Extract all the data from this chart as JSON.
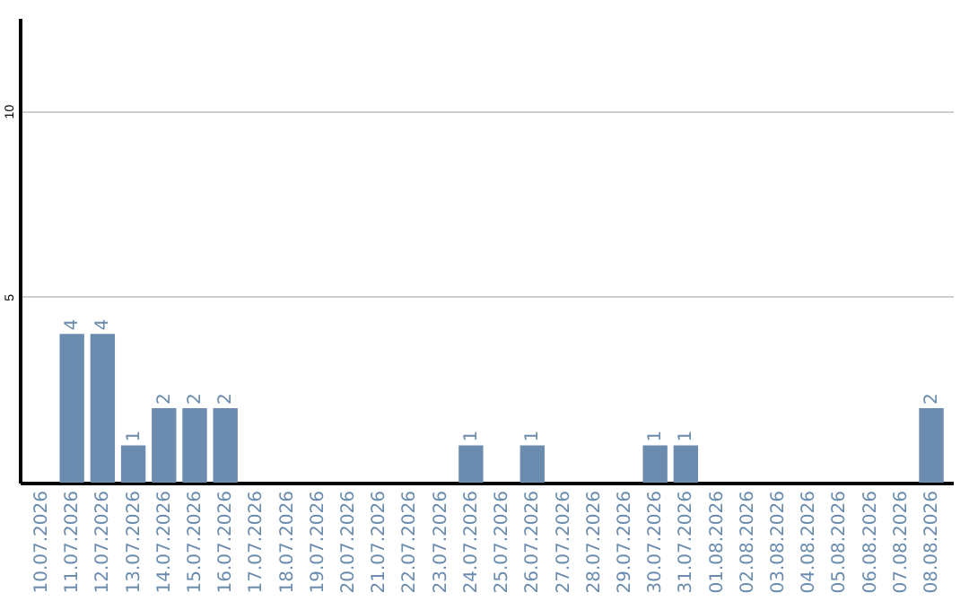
{
  "chart_data": {
    "type": "bar",
    "categories": [
      "10.07.2026",
      "11.07.2026",
      "12.07.2026",
      "13.07.2026",
      "14.07.2026",
      "15.07.2026",
      "16.07.2026",
      "17.07.2026",
      "18.07.2026",
      "19.07.2026",
      "20.07.2026",
      "21.07.2026",
      "22.07.2026",
      "23.07.2026",
      "24.07.2026",
      "25.07.2026",
      "26.07.2026",
      "27.07.2026",
      "28.07.2026",
      "29.07.2026",
      "30.07.2026",
      "31.07.2026",
      "01.08.2026",
      "02.08.2026",
      "03.08.2026",
      "04.08.2026",
      "05.08.2026",
      "06.08.2026",
      "07.08.2026",
      "08.08.2026"
    ],
    "values": [
      0,
      4,
      4,
      1,
      2,
      2,
      2,
      0,
      0,
      0,
      0,
      0,
      0,
      0,
      1,
      0,
      1,
      0,
      0,
      0,
      1,
      1,
      0,
      0,
      0,
      0,
      0,
      0,
      0,
      2
    ],
    "value_labels": [
      null,
      "4",
      "4",
      "1",
      "2",
      "2",
      "2",
      null,
      null,
      null,
      null,
      null,
      null,
      null,
      "1",
      null,
      "1",
      null,
      null,
      null,
      "1",
      "1",
      null,
      null,
      null,
      null,
      null,
      null,
      null,
      "2"
    ],
    "color": "#6b8cae",
    "ylim": [
      0,
      12.5
    ],
    "yticks": [
      5,
      10
    ],
    "grid": "y"
  }
}
